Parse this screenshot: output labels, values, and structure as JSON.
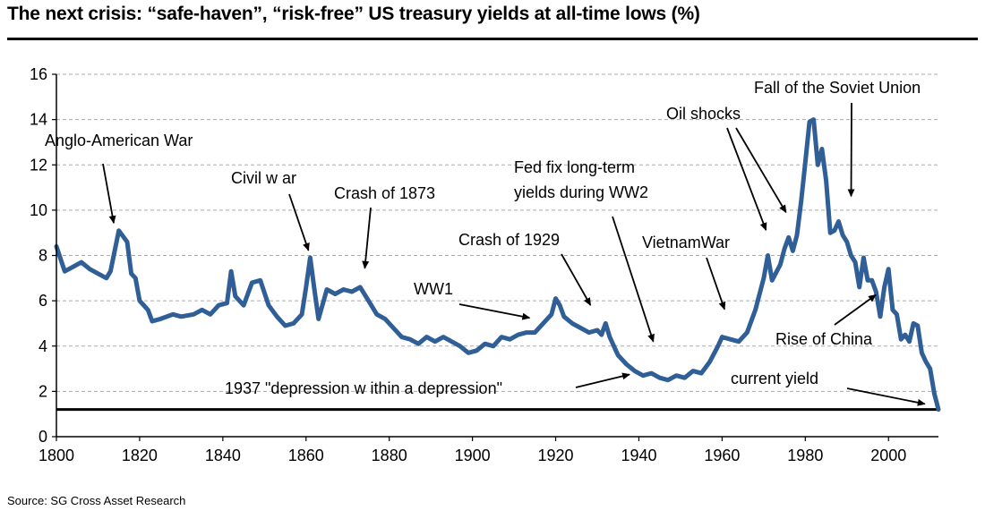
{
  "title": "The next crisis: “safe-haven”, “risk-free” US treasury yields at all-time lows (%)",
  "source": "Source: SG Cross Asset Research",
  "colors": {
    "series": "#2f5f96",
    "axis": "#000000",
    "grid": "#aaaaaa",
    "current_yield_line": "#000000"
  },
  "chart_data": {
    "type": "line",
    "title": "",
    "xlabel": "",
    "ylabel": "",
    "xlim": [
      1800,
      2012
    ],
    "ylim": [
      0,
      16
    ],
    "grid": "horizontal dashed",
    "x_ticks": [
      1800,
      1820,
      1840,
      1860,
      1880,
      1900,
      1920,
      1940,
      1960,
      1980,
      2000
    ],
    "y_ticks": [
      0,
      2,
      4,
      6,
      8,
      10,
      12,
      14,
      16
    ],
    "x_tick_labels": [
      "1800",
      "1820",
      "1840",
      "1860",
      "1880",
      "1900",
      "1920",
      "1940",
      "1960",
      "1980",
      "2000"
    ],
    "y_tick_labels": [
      "0",
      "2",
      "4",
      "6",
      "8",
      "10",
      "12",
      "14",
      "16"
    ],
    "current_yield": 1.2,
    "series": [
      {
        "points": [
          [
            1800,
            8.4
          ],
          [
            1802,
            7.3
          ],
          [
            1804,
            7.5
          ],
          [
            1806,
            7.7
          ],
          [
            1808,
            7.4
          ],
          [
            1810,
            7.2
          ],
          [
            1812,
            7.0
          ],
          [
            1813,
            7.3
          ],
          [
            1815,
            9.1
          ],
          [
            1817,
            8.6
          ],
          [
            1818,
            7.2
          ],
          [
            1819,
            7.0
          ],
          [
            1820,
            6.0
          ],
          [
            1822,
            5.6
          ],
          [
            1823,
            5.1
          ],
          [
            1825,
            5.2
          ],
          [
            1828,
            5.4
          ],
          [
            1830,
            5.3
          ],
          [
            1833,
            5.4
          ],
          [
            1835,
            5.6
          ],
          [
            1837,
            5.4
          ],
          [
            1839,
            5.8
          ],
          [
            1841,
            5.9
          ],
          [
            1842,
            7.3
          ],
          [
            1843,
            6.2
          ],
          [
            1845,
            5.8
          ],
          [
            1847,
            6.8
          ],
          [
            1849,
            6.9
          ],
          [
            1851,
            5.8
          ],
          [
            1853,
            5.3
          ],
          [
            1855,
            4.9
          ],
          [
            1857,
            5.0
          ],
          [
            1859,
            5.4
          ],
          [
            1860,
            6.6
          ],
          [
            1861,
            7.9
          ],
          [
            1862,
            6.5
          ],
          [
            1863,
            5.2
          ],
          [
            1865,
            6.5
          ],
          [
            1867,
            6.3
          ],
          [
            1869,
            6.5
          ],
          [
            1871,
            6.4
          ],
          [
            1873,
            6.6
          ],
          [
            1875,
            6.0
          ],
          [
            1877,
            5.4
          ],
          [
            1879,
            5.2
          ],
          [
            1881,
            4.8
          ],
          [
            1883,
            4.4
          ],
          [
            1885,
            4.3
          ],
          [
            1887,
            4.1
          ],
          [
            1889,
            4.4
          ],
          [
            1891,
            4.2
          ],
          [
            1893,
            4.4
          ],
          [
            1895,
            4.2
          ],
          [
            1897,
            4.0
          ],
          [
            1899,
            3.7
          ],
          [
            1901,
            3.8
          ],
          [
            1903,
            4.1
          ],
          [
            1905,
            4.0
          ],
          [
            1907,
            4.4
          ],
          [
            1909,
            4.3
          ],
          [
            1911,
            4.5
          ],
          [
            1913,
            4.6
          ],
          [
            1915,
            4.6
          ],
          [
            1917,
            5.0
          ],
          [
            1919,
            5.4
          ],
          [
            1920,
            6.1
          ],
          [
            1921,
            5.8
          ],
          [
            1922,
            5.3
          ],
          [
            1924,
            5.0
          ],
          [
            1926,
            4.8
          ],
          [
            1928,
            4.6
          ],
          [
            1930,
            4.7
          ],
          [
            1931,
            4.5
          ],
          [
            1932,
            5.0
          ],
          [
            1933,
            4.4
          ],
          [
            1935,
            3.6
          ],
          [
            1937,
            3.2
          ],
          [
            1939,
            2.9
          ],
          [
            1941,
            2.7
          ],
          [
            1943,
            2.8
          ],
          [
            1945,
            2.6
          ],
          [
            1947,
            2.5
          ],
          [
            1949,
            2.7
          ],
          [
            1951,
            2.6
          ],
          [
            1953,
            2.9
          ],
          [
            1955,
            2.8
          ],
          [
            1957,
            3.3
          ],
          [
            1959,
            4.0
          ],
          [
            1960,
            4.4
          ],
          [
            1962,
            4.3
          ],
          [
            1964,
            4.2
          ],
          [
            1966,
            4.6
          ],
          [
            1968,
            5.6
          ],
          [
            1970,
            7.0
          ],
          [
            1971,
            8.0
          ],
          [
            1972,
            6.9
          ],
          [
            1974,
            7.6
          ],
          [
            1975,
            8.3
          ],
          [
            1976,
            8.8
          ],
          [
            1977,
            8.2
          ],
          [
            1978,
            8.9
          ],
          [
            1979,
            10.4
          ],
          [
            1980,
            12.1
          ],
          [
            1981,
            13.9
          ],
          [
            1982,
            14.0
          ],
          [
            1983,
            12.0
          ],
          [
            1984,
            12.7
          ],
          [
            1985,
            11.3
          ],
          [
            1986,
            9.0
          ],
          [
            1987,
            9.1
          ],
          [
            1988,
            9.5
          ],
          [
            1989,
            8.9
          ],
          [
            1990,
            8.6
          ],
          [
            1991,
            8.0
          ],
          [
            1992,
            7.7
          ],
          [
            1993,
            6.6
          ],
          [
            1994,
            7.9
          ],
          [
            1995,
            6.9
          ],
          [
            1996,
            6.9
          ],
          [
            1997,
            6.4
          ],
          [
            1998,
            5.3
          ],
          [
            1999,
            6.6
          ],
          [
            2000,
            7.4
          ],
          [
            2001,
            5.6
          ],
          [
            2002,
            5.4
          ],
          [
            2003,
            4.3
          ],
          [
            2004,
            4.5
          ],
          [
            2005,
            4.2
          ],
          [
            2006,
            5.0
          ],
          [
            2007,
            4.9
          ],
          [
            2008,
            3.7
          ],
          [
            2009,
            3.3
          ],
          [
            2010,
            3.0
          ],
          [
            2011,
            1.9
          ],
          [
            2012,
            1.2
          ]
        ]
      }
    ],
    "annotations": [
      {
        "id": "anglo-american-war",
        "text": "Anglo-American War",
        "x": 1814,
        "y": 9.2
      },
      {
        "id": "civil-war",
        "text": "Civil w ar",
        "x": 1861,
        "y": 8.0
      },
      {
        "id": "crash-1873",
        "text": "Crash of 1873",
        "x": 1874,
        "y": 7.2
      },
      {
        "id": "ww1",
        "text": "WW1",
        "x": 1915,
        "y": 5.2
      },
      {
        "id": "crash-1929",
        "text": "Crash of 1929",
        "x": 1929,
        "y": 5.6
      },
      {
        "id": "fed-fix",
        "text": [
          "Fed fix long-term",
          "yields during WW2"
        ],
        "x": 1944,
        "y": 3.9
      },
      {
        "id": "depression-1937",
        "text": "1937 \"depression w ithin a depression\"",
        "x": 1939,
        "y": 2.8
      },
      {
        "id": "vietnam-war",
        "text": "VietnamWar",
        "x": 1961,
        "y": 5.4
      },
      {
        "id": "oil-shocks",
        "text": "Oil shocks",
        "x": [
          1971,
          1976
        ],
        "y": [
          8.9,
          9.7
        ]
      },
      {
        "id": "fall-soviet-union",
        "text": "Fall of the Soviet Union",
        "x": 1991,
        "y": 10.3
      },
      {
        "id": "rise-of-china",
        "text": "Rise of China",
        "x": 1998,
        "y": 6.4
      },
      {
        "id": "current-yield",
        "text": "current yield",
        "x": 2010,
        "y": 1.4
      }
    ]
  }
}
